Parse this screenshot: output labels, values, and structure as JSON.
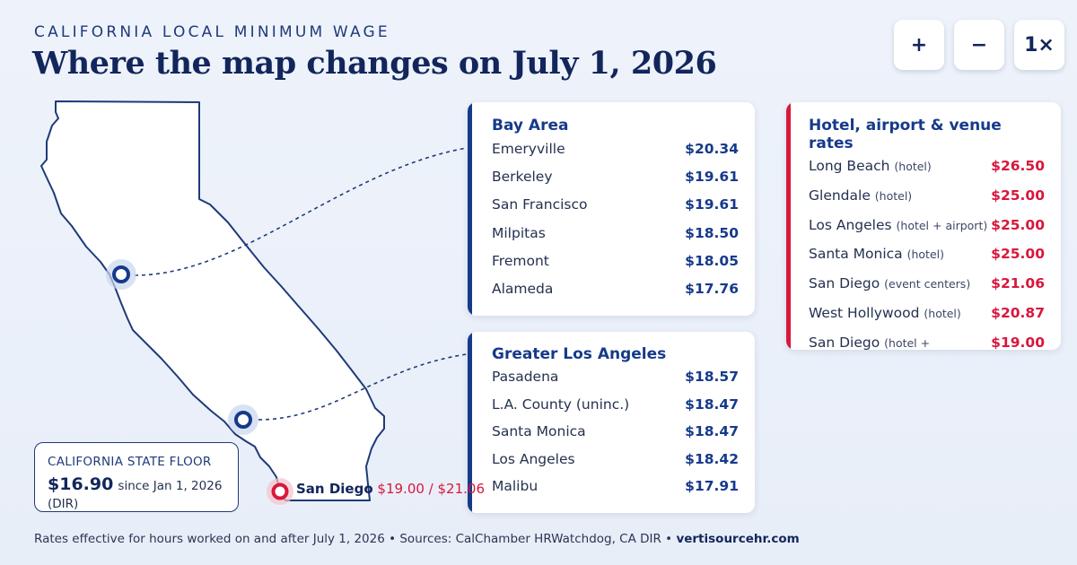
{
  "header": {
    "kicker": "CALIFORNIA LOCAL MINIMUM WAGE",
    "title": "Where the map changes on July 1, 2026"
  },
  "zoom_controls": {
    "zoom_in": "+",
    "zoom_out": "−",
    "reset": "1×"
  },
  "bay_area": {
    "title": "Bay Area",
    "items": [
      {
        "city": "Emeryville",
        "rate": "$20.34"
      },
      {
        "city": "Berkeley",
        "rate": "$19.61"
      },
      {
        "city": "San Francisco",
        "rate": "$19.61"
      },
      {
        "city": "Milpitas",
        "rate": "$18.50"
      },
      {
        "city": "Fremont",
        "rate": "$18.05"
      },
      {
        "city": "Alameda",
        "rate": "$17.76"
      }
    ]
  },
  "greater_la": {
    "title": "Greater Los Angeles",
    "items": [
      {
        "city": "Pasadena",
        "rate": "$18.57"
      },
      {
        "city": "L.A. County (uninc.)",
        "rate": "$18.47"
      },
      {
        "city": "Santa Monica",
        "rate": "$18.47"
      },
      {
        "city": "Los Angeles",
        "rate": "$18.42"
      },
      {
        "city": "Malibu",
        "rate": "$17.91"
      }
    ]
  },
  "hotel_rates": {
    "title": "Hotel, airport & venue rates",
    "items": [
      {
        "city": "Long Beach",
        "note": "(hotel)",
        "rate": "$26.50"
      },
      {
        "city": "Glendale",
        "note": "(hotel)",
        "rate": "$25.00"
      },
      {
        "city": "Los Angeles",
        "note": "(hotel + airport)",
        "rate": "$25.00"
      },
      {
        "city": "Santa Monica",
        "note": "(hotel)",
        "rate": "$25.00"
      },
      {
        "city": "San Diego",
        "note": "(event centers)",
        "rate": "$21.06"
      },
      {
        "city": "West Hollywood",
        "note": "(hotel)",
        "rate": "$20.87"
      },
      {
        "city": "San Diego",
        "note": "(hotel + amusement)",
        "rate": "$19.00"
      }
    ]
  },
  "state_floor": {
    "label": "CALIFORNIA STATE FLOOR",
    "amount": "$16.90",
    "since": "since Jan 1, 2026 (DIR)"
  },
  "san_diego_marker": {
    "city": "San Diego",
    "rates": "$19.00 / $21.06"
  },
  "footer": {
    "text": "Rates effective for hours worked on and after July 1, 2026 • Sources: CalChamber HRWatchdog, CA DIR •",
    "site": "vertisourcehr.com"
  },
  "colors": {
    "navy": "#12265c",
    "accent_blue": "#163a8a",
    "accent_red": "#d8173c"
  }
}
